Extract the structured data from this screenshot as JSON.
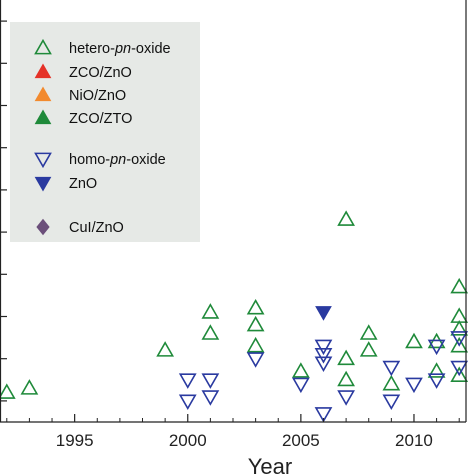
{
  "chart_data": {
    "type": "scatter",
    "xlabel": "Year",
    "ylabel": "",
    "xlim": [
      1991.7,
      2012.3
    ],
    "ylim": [
      0,
      100
    ],
    "x_ticks": [
      1995,
      2000,
      2005,
      2010
    ],
    "y_tick_values": [
      5,
      15,
      25,
      35,
      45,
      55,
      65,
      75,
      85,
      95
    ],
    "legend_position": "top-left",
    "colors": {
      "green": "#1f8a3a",
      "blue": "#2a3aa0",
      "red": "#e53228",
      "orange": "#f28a2e",
      "purple": "#6b4f7a",
      "legend_bg": "#e6e9e6"
    },
    "legend": [
      {
        "label_parts": [
          "hetero-",
          "pn",
          "-oxide"
        ],
        "marker": "triangle-up-open",
        "color": "green"
      },
      {
        "label_parts": [
          "ZCO/ZnO"
        ],
        "marker": "triangle-up-filled",
        "color": "red"
      },
      {
        "label_parts": [
          "NiO/ZnO"
        ],
        "marker": "triangle-up-filled",
        "color": "orange"
      },
      {
        "label_parts": [
          "ZCO/ZTO"
        ],
        "marker": "triangle-up-filled",
        "color": "green"
      },
      {
        "label_parts": [
          "homo-",
          "pn",
          "-oxide"
        ],
        "marker": "triangle-down-open",
        "color": "blue"
      },
      {
        "label_parts": [
          "ZnO"
        ],
        "marker": "triangle-down-filled",
        "color": "blue"
      },
      {
        "label_parts": [
          "CuI/ZnO"
        ],
        "marker": "diamond-filled",
        "color": "purple"
      }
    ],
    "series": [
      {
        "legend_index": 0,
        "marker": "triangle-up-open",
        "color": "green",
        "points": [
          {
            "x": 1992,
            "y": 7
          },
          {
            "x": 1993,
            "y": 8
          },
          {
            "x": 1999,
            "y": 17
          },
          {
            "x": 2001,
            "y": 21
          },
          {
            "x": 2001,
            "y": 26
          },
          {
            "x": 2003,
            "y": 18
          },
          {
            "x": 2003,
            "y": 23
          },
          {
            "x": 2003,
            "y": 27
          },
          {
            "x": 2005,
            "y": 12
          },
          {
            "x": 2007,
            "y": 48
          },
          {
            "x": 2007,
            "y": 10
          },
          {
            "x": 2007,
            "y": 15
          },
          {
            "x": 2008,
            "y": 17
          },
          {
            "x": 2008,
            "y": 21
          },
          {
            "x": 2009,
            "y": 9
          },
          {
            "x": 2010,
            "y": 19
          },
          {
            "x": 2011,
            "y": 12
          },
          {
            "x": 2011,
            "y": 19
          },
          {
            "x": 2012,
            "y": 22
          },
          {
            "x": 2012,
            "y": 25
          },
          {
            "x": 2012,
            "y": 18
          },
          {
            "x": 2012,
            "y": 11
          },
          {
            "x": 2012,
            "y": 32
          }
        ]
      },
      {
        "legend_index": 4,
        "marker": "triangle-down-open",
        "color": "blue",
        "points": [
          {
            "x": 2000,
            "y": 10
          },
          {
            "x": 2000,
            "y": 5
          },
          {
            "x": 2001,
            "y": 10
          },
          {
            "x": 2001,
            "y": 6
          },
          {
            "x": 2003,
            "y": 15
          },
          {
            "x": 2005,
            "y": 9
          },
          {
            "x": 2006,
            "y": 16
          },
          {
            "x": 2006,
            "y": 14
          },
          {
            "x": 2006,
            "y": 18
          },
          {
            "x": 2006,
            "y": 2
          },
          {
            "x": 2007,
            "y": 6
          },
          {
            "x": 2009,
            "y": 13
          },
          {
            "x": 2009,
            "y": 5
          },
          {
            "x": 2010,
            "y": 9
          },
          {
            "x": 2011,
            "y": 18
          },
          {
            "x": 2011,
            "y": 10
          },
          {
            "x": 2012,
            "y": 13
          },
          {
            "x": 2012,
            "y": 20
          }
        ]
      },
      {
        "legend_index": 5,
        "marker": "triangle-down-filled",
        "color": "blue",
        "points": [
          {
            "x": 2006,
            "y": 26
          }
        ]
      }
    ]
  }
}
